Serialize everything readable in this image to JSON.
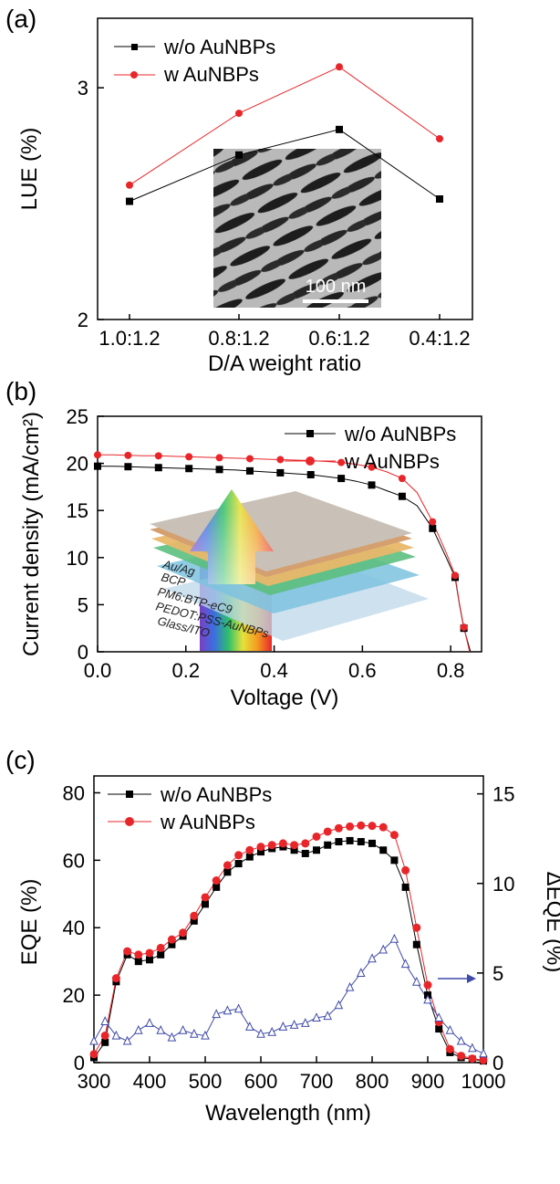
{
  "panels": {
    "a": "(a)",
    "b": "(b)",
    "c": "(c)"
  },
  "chart_data": [
    {
      "type": "line",
      "panel": "(a)",
      "xlabel": "D/A weight ratio",
      "ylabel": "LUE (%)",
      "categories": [
        "1.0:1.2",
        "0.8:1.2",
        "0.6:1.2",
        "0.4:1.2"
      ],
      "ylim": [
        2,
        3.3
      ],
      "yticks": [
        "2",
        "3"
      ],
      "legend_position": "top-left",
      "series": [
        {
          "name": "w/o AuNBPs",
          "color": "#000000",
          "marker": "square",
          "values": [
            2.51,
            2.71,
            2.82,
            2.52
          ]
        },
        {
          "name": "w AuNBPs",
          "color": "#e8262a",
          "marker": "circle",
          "values": [
            2.58,
            2.89,
            3.09,
            2.78
          ]
        }
      ],
      "inset": {
        "kind": "TEM image",
        "scale_bar_label": "100 nm"
      }
    },
    {
      "type": "line",
      "panel": "(b)",
      "xlabel": "Voltage (V)",
      "ylabel": "Current density (mA/cm²)",
      "xlim": [
        0,
        0.87
      ],
      "ylim": [
        0,
        25
      ],
      "xticks": [
        "0.0",
        "0.2",
        "0.4",
        "0.6",
        "0.8"
      ],
      "yticks": [
        "0",
        "5",
        "10",
        "15",
        "20",
        "25"
      ],
      "legend_position": "top-right",
      "series": [
        {
          "name": "w/o AuNBPs",
          "color": "#000000",
          "marker": "square",
          "x": [
            0.0,
            0.034,
            0.069,
            0.103,
            0.138,
            0.172,
            0.207,
            0.241,
            0.276,
            0.31,
            0.345,
            0.379,
            0.414,
            0.448,
            0.483,
            0.517,
            0.552,
            0.586,
            0.621,
            0.655,
            0.69,
            0.724,
            0.759,
            0.79,
            0.81,
            0.82,
            0.83,
            0.845
          ],
          "y": [
            19.7,
            19.7,
            19.65,
            19.6,
            19.55,
            19.5,
            19.45,
            19.4,
            19.35,
            19.3,
            19.2,
            19.1,
            19.0,
            18.9,
            18.8,
            18.6,
            18.4,
            18.1,
            17.7,
            17.1,
            16.5,
            15.5,
            13.1,
            10.0,
            7.9,
            5.0,
            2.5,
            0.0
          ]
        },
        {
          "name": "w AuNBPs",
          "color": "#e8262a",
          "marker": "circle",
          "x": [
            0.0,
            0.034,
            0.069,
            0.103,
            0.138,
            0.172,
            0.207,
            0.241,
            0.276,
            0.31,
            0.345,
            0.379,
            0.414,
            0.448,
            0.483,
            0.517,
            0.552,
            0.586,
            0.621,
            0.655,
            0.69,
            0.724,
            0.759,
            0.79,
            0.81,
            0.82,
            0.83,
            0.843
          ],
          "y": [
            20.9,
            20.9,
            20.85,
            20.8,
            20.8,
            20.75,
            20.7,
            20.65,
            20.6,
            20.55,
            20.5,
            20.45,
            20.4,
            20.35,
            20.3,
            20.2,
            20.1,
            19.9,
            19.6,
            19.1,
            18.4,
            16.9,
            13.8,
            10.5,
            8.1,
            5.1,
            2.6,
            0.0
          ]
        }
      ],
      "inset": {
        "kind": "device stack",
        "layers": [
          "Au/Ag",
          "BCP",
          "PM6:BTP-eC9",
          "PEDOT:PSS-AuNBPs",
          "Glass/ITO"
        ]
      }
    },
    {
      "type": "line",
      "panel": "(c)",
      "xlabel": "Wavelength (nm)",
      "ylabel": "EQE (%)",
      "y2label": "ΔEQE (%)",
      "xlim": [
        300,
        1000
      ],
      "ylim": [
        0,
        85
      ],
      "y2lim": [
        0,
        16
      ],
      "xticks": [
        "300",
        "400",
        "500",
        "600",
        "700",
        "800",
        "900",
        "1000"
      ],
      "yticks": [
        "0",
        "20",
        "40",
        "60",
        "80"
      ],
      "y2ticks": [
        "0",
        "5",
        "10",
        "15"
      ],
      "legend_position": "top-left",
      "x": [
        300,
        320,
        340,
        360,
        380,
        400,
        420,
        440,
        460,
        480,
        500,
        520,
        540,
        560,
        580,
        600,
        620,
        640,
        660,
        680,
        700,
        720,
        740,
        760,
        780,
        800,
        820,
        840,
        860,
        880,
        900,
        920,
        940,
        960,
        980,
        1000
      ],
      "series": [
        {
          "name": "w/o AuNBPs",
          "color": "#000000",
          "marker": "square",
          "axis": "left",
          "values": [
            1.5,
            6,
            24,
            32,
            30,
            30.5,
            32,
            35,
            37.5,
            42,
            47,
            52,
            56.5,
            59,
            61,
            62.5,
            63.5,
            64,
            63,
            62,
            63,
            64.5,
            65.5,
            65.8,
            65.5,
            65,
            63,
            60,
            52,
            35,
            20,
            10,
            3,
            1.5,
            1,
            0.5
          ]
        },
        {
          "name": "w AuNBPs",
          "color": "#e8262a",
          "marker": "circle",
          "axis": "left",
          "values": [
            2.5,
            8,
            25,
            33,
            32,
            32.5,
            34,
            36.5,
            38.5,
            43.5,
            49,
            54,
            58.5,
            61.5,
            63,
            64,
            64.5,
            65,
            64.5,
            65,
            67,
            68.5,
            69.5,
            70,
            70.3,
            70.2,
            69.8,
            67.5,
            57,
            40,
            23,
            12,
            4,
            2,
            1.2,
            0.7
          ]
        },
        {
          "name": "",
          "color": "#3f4aa8",
          "marker": "open-triangle",
          "axis": "right",
          "values": [
            1.2,
            2.3,
            1.5,
            1.2,
            1.8,
            2.2,
            1.8,
            1.4,
            1.8,
            1.6,
            1.5,
            2.7,
            2.9,
            3.0,
            2.0,
            1.6,
            1.7,
            2.0,
            2.1,
            2.2,
            2.5,
            2.6,
            3.2,
            4.2,
            5.0,
            5.8,
            6.3,
            6.9,
            5.5,
            4.5,
            3.5,
            2.5,
            1.8,
            1.2,
            0.8,
            0.5
          ]
        }
      ]
    }
  ]
}
